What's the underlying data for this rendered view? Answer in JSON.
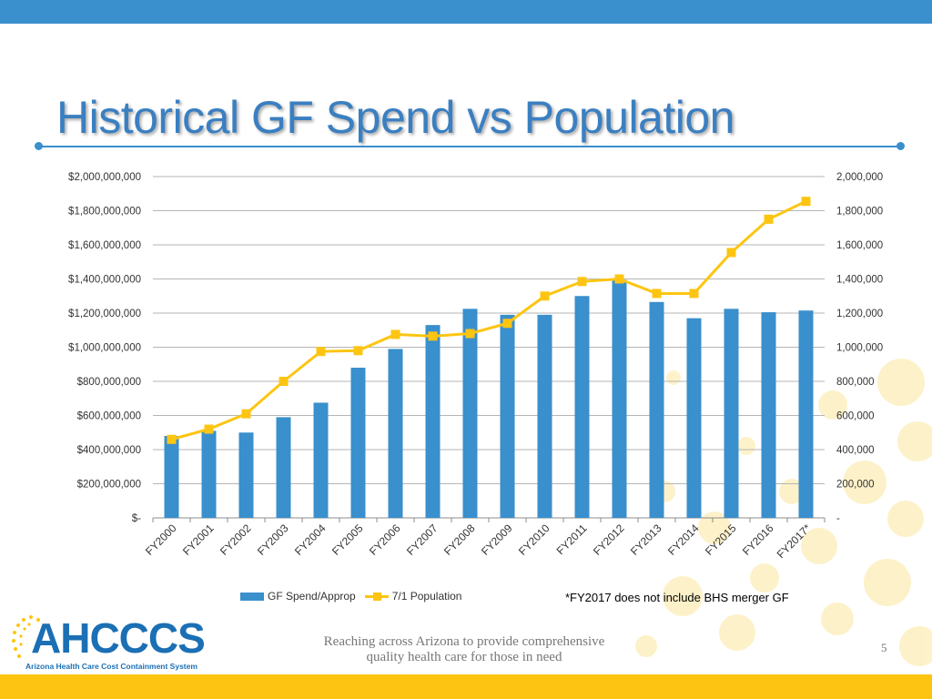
{
  "slide": {
    "title": "Historical GF Spend vs Population",
    "note": "*FY2017 does not include BHS merger GF",
    "tagline_line1": "Reaching across Arizona to provide comprehensive",
    "tagline_line2": "quality health care for those in need",
    "page_number": "5",
    "logo_text": "AHCCCS",
    "logo_subtitle": "Arizona Health Care Cost Containment System"
  },
  "colors": {
    "bar": "#3a8fcd",
    "line": "#fdc512",
    "title": "#3a7fc1",
    "top_bar": "#3a8fcd",
    "bottom_bar": "#fdc512"
  },
  "chart_data": {
    "type": "bar",
    "categories": [
      "FY2000",
      "FY2001",
      "FY2002",
      "FY2003",
      "FY2004",
      "FY2005",
      "FY2006",
      "FY2007",
      "FY2008",
      "FY2009",
      "FY2010",
      "FY2011",
      "FY2012",
      "FY2013",
      "FY2014",
      "FY2015",
      "FY2016",
      "FY2017*"
    ],
    "series": [
      {
        "name": "GF Spend/Approp",
        "type": "bar",
        "axis": "left",
        "values": [
          480000000,
          510000000,
          500000000,
          590000000,
          675000000,
          880000000,
          990000000,
          1130000000,
          1225000000,
          1190000000,
          1190000000,
          1300000000,
          1395000000,
          1265000000,
          1170000000,
          1225000000,
          1205000000,
          1215000000
        ]
      },
      {
        "name": "7/1 Population",
        "type": "line",
        "axis": "right",
        "values": [
          460000,
          520000,
          610000,
          800000,
          975000,
          980000,
          1075000,
          1065000,
          1080000,
          1140000,
          1300000,
          1385000,
          1400000,
          1315000,
          1315000,
          1555000,
          1750000,
          1855000
        ]
      }
    ],
    "y_left": {
      "min": 0,
      "max": 2000000000,
      "ticks": [
        "$-",
        "$200,000,000",
        "$400,000,000",
        "$600,000,000",
        "$800,000,000",
        "$1,000,000,000",
        "$1,200,000,000",
        "$1,400,000,000",
        "$1,600,000,000",
        "$1,800,000,000",
        "$2,000,000,000"
      ]
    },
    "y_right": {
      "min": 0,
      "max": 2000000,
      "ticks": [
        "-",
        "200,000",
        "400,000",
        "600,000",
        "800,000",
        "1,000,000",
        "1,200,000",
        "1,400,000",
        "1,600,000",
        "1,800,000",
        "2,000,000"
      ]
    },
    "grid": true,
    "legend": "bottom"
  }
}
